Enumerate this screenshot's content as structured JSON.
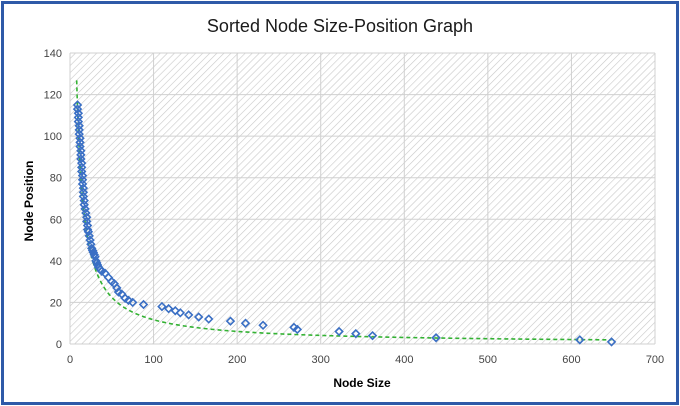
{
  "colors": {
    "frame_border": "#2f5aa8",
    "marker": "#3a6fc4",
    "trendline": "#33b233",
    "gridline": "#d0d0d0",
    "hatch": "#c8c8c8"
  },
  "chart_data": {
    "type": "scatter",
    "title": "Sorted Node Size-Position Graph",
    "xlabel": "Node Size",
    "ylabel": "Node Position",
    "xlim": [
      0,
      700
    ],
    "ylim": [
      0,
      140
    ],
    "x_ticks": [
      "0",
      "100",
      "200",
      "300",
      "400",
      "500",
      "600",
      "700"
    ],
    "y_ticks": [
      "0",
      "20",
      "40",
      "60",
      "80",
      "100",
      "120",
      "140"
    ],
    "grid": true,
    "legend": "none",
    "marker": "diamond-outline",
    "trendline": "dashed power fit",
    "points": [
      [
        9,
        115
      ],
      [
        9,
        113
      ],
      [
        10,
        111
      ],
      [
        10,
        109
      ],
      [
        10,
        107
      ],
      [
        11,
        105
      ],
      [
        11,
        103
      ],
      [
        11,
        101
      ],
      [
        12,
        99
      ],
      [
        12,
        97
      ],
      [
        12,
        95
      ],
      [
        13,
        93
      ],
      [
        13,
        91
      ],
      [
        13,
        89
      ],
      [
        14,
        87
      ],
      [
        14,
        85
      ],
      [
        14,
        83
      ],
      [
        15,
        81
      ],
      [
        15,
        79
      ],
      [
        15,
        77
      ],
      [
        16,
        75
      ],
      [
        16,
        73
      ],
      [
        16,
        71
      ],
      [
        17,
        69
      ],
      [
        17,
        67
      ],
      [
        18,
        65
      ],
      [
        19,
        63
      ],
      [
        20,
        61
      ],
      [
        20,
        59
      ],
      [
        21,
        57
      ],
      [
        21,
        55
      ],
      [
        22,
        54
      ],
      [
        23,
        52
      ],
      [
        24,
        50
      ],
      [
        25,
        48
      ],
      [
        26,
        46
      ],
      [
        27,
        45
      ],
      [
        28,
        44
      ],
      [
        29,
        43
      ],
      [
        30,
        42
      ],
      [
        31,
        40
      ],
      [
        32,
        39
      ],
      [
        33,
        38
      ],
      [
        34,
        37
      ],
      [
        36,
        36
      ],
      [
        38,
        35
      ],
      [
        42,
        34
      ],
      [
        46,
        32
      ],
      [
        50,
        30
      ],
      [
        53,
        29
      ],
      [
        56,
        27
      ],
      [
        58,
        25
      ],
      [
        62,
        24
      ],
      [
        66,
        22
      ],
      [
        70,
        21
      ],
      [
        75,
        20
      ],
      [
        88,
        19
      ],
      [
        110,
        18
      ],
      [
        118,
        17
      ],
      [
        126,
        16
      ],
      [
        132,
        15
      ],
      [
        142,
        14
      ],
      [
        154,
        13
      ],
      [
        166,
        12
      ],
      [
        192,
        11
      ],
      [
        210,
        10
      ],
      [
        231,
        9
      ],
      [
        268,
        8
      ],
      [
        272,
        7
      ],
      [
        322,
        6
      ],
      [
        342,
        5
      ],
      [
        362,
        4
      ],
      [
        438,
        3
      ],
      [
        610,
        2
      ],
      [
        648,
        1
      ]
    ],
    "fit": {
      "a": 905,
      "b": -0.945,
      "x_start": 8,
      "x_end": 648
    }
  }
}
